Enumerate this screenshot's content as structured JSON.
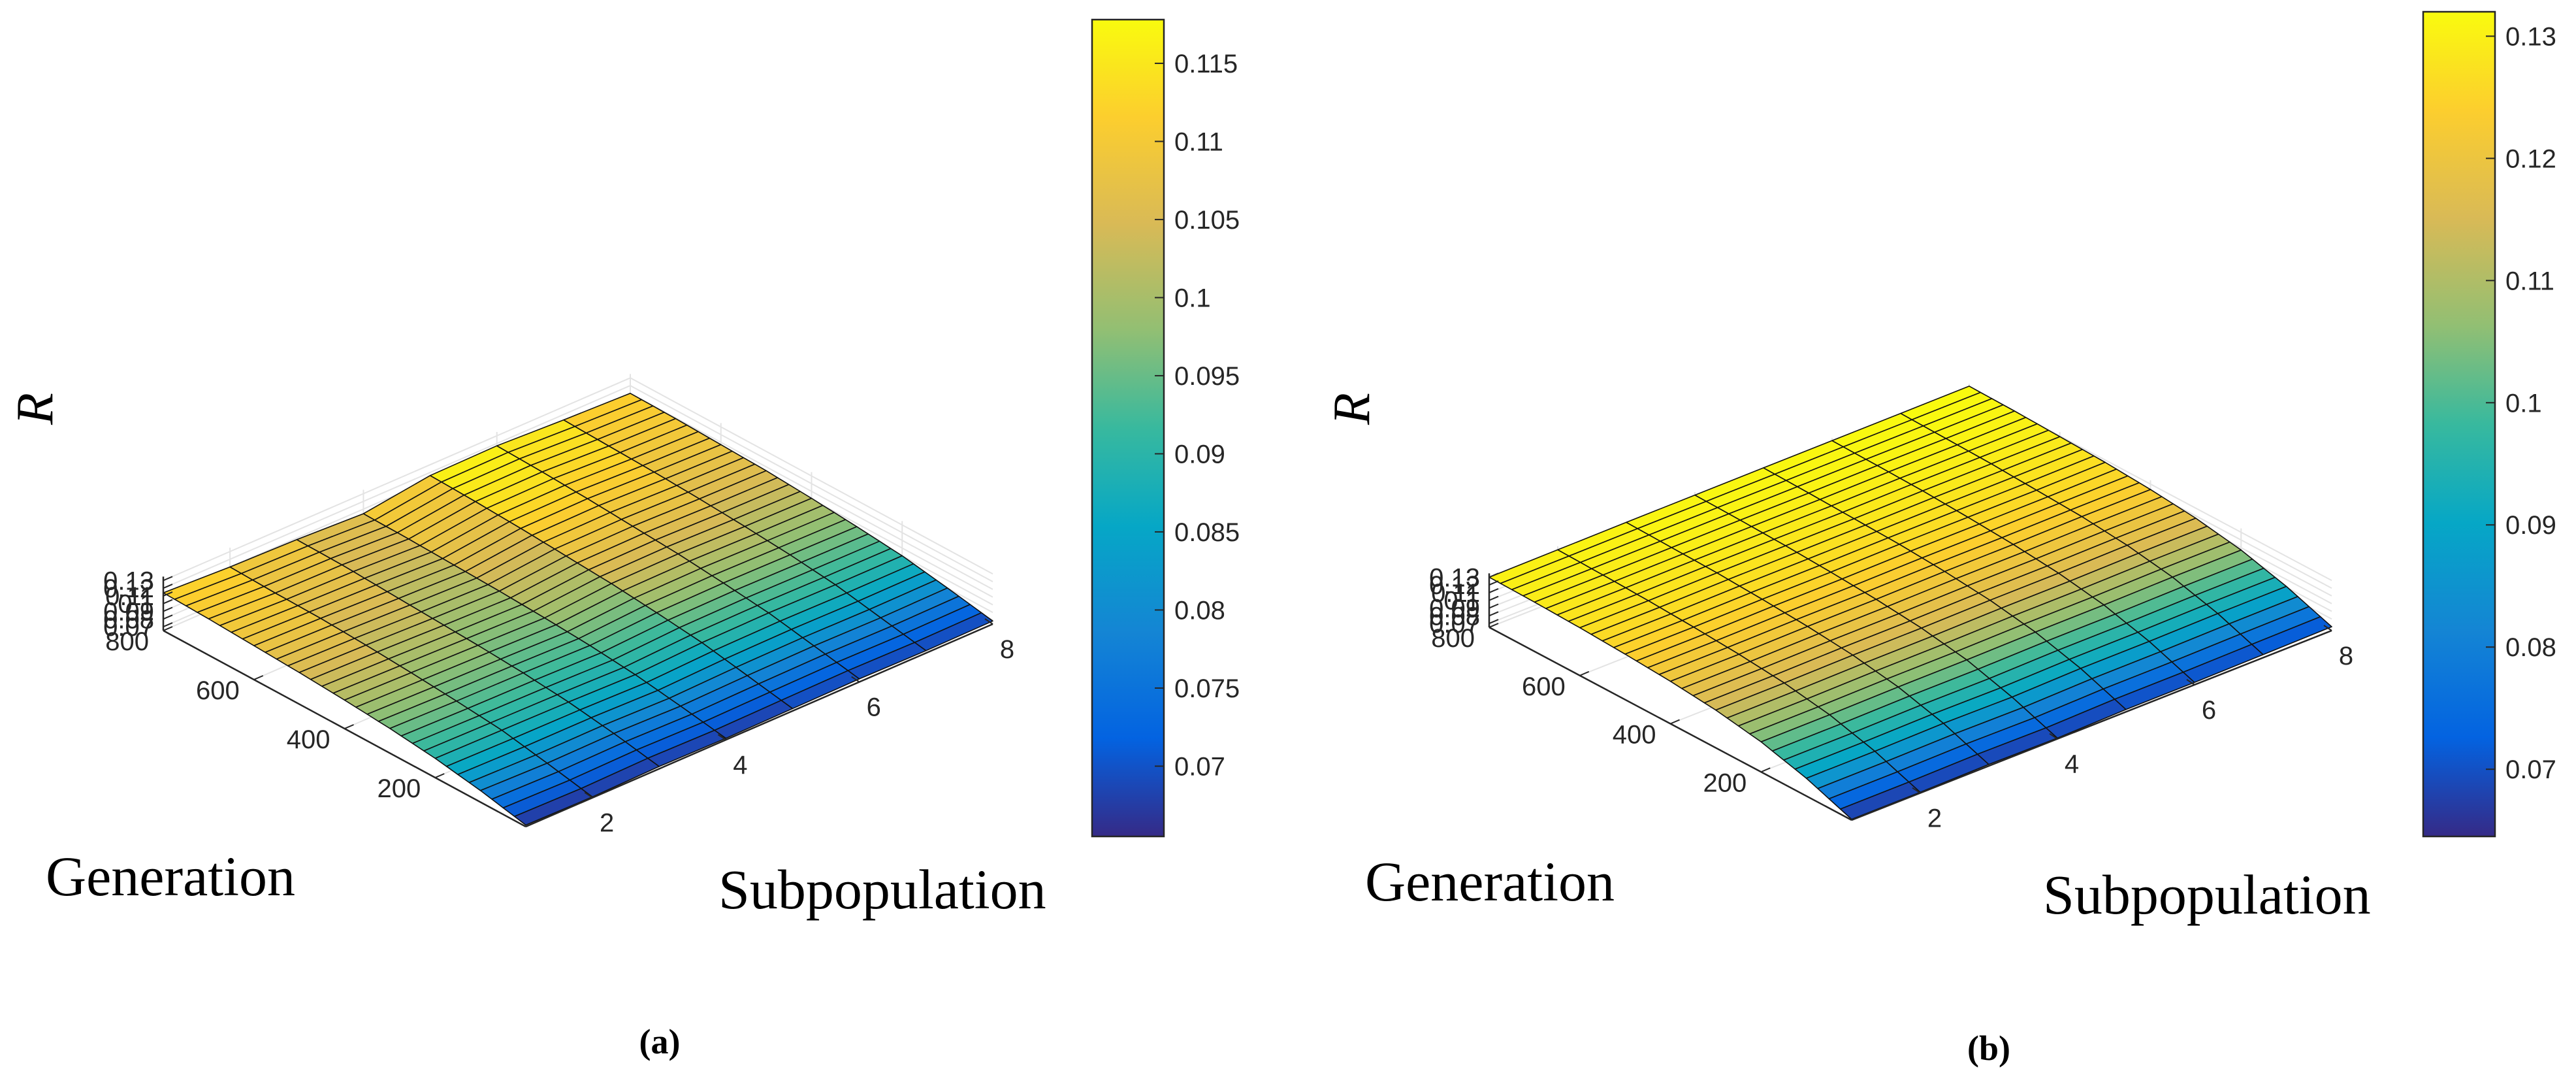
{
  "charts": [
    {
      "id": "a",
      "caption": "(a)",
      "type": "surface",
      "title": "",
      "zlabel": "R",
      "xlabel": "Subpopulation",
      "ylabel": "Generation",
      "z_ticks": [
        "0.07",
        "0.08",
        "0.09",
        "0.1",
        "0.11",
        "0.12",
        "0.13"
      ],
      "x_ticks": [
        "2",
        "4",
        "6",
        "8"
      ],
      "y_ticks": [
        "200",
        "400",
        "600",
        "800"
      ],
      "zlim": [
        0.065,
        0.135
      ],
      "xlim": [
        1,
        8
      ],
      "ylim": [
        0,
        800
      ],
      "colorbar": {
        "range": [
          0.0655,
          0.1178
        ],
        "ticks": [
          "0.07",
          "0.075",
          "0.08",
          "0.085",
          "0.09",
          "0.095",
          "0.1",
          "0.105",
          "0.11",
          "0.115"
        ]
      },
      "subpopulations": [
        1,
        2,
        3,
        4,
        5,
        6,
        7,
        8
      ],
      "generations": [
        0,
        100,
        200,
        300,
        400,
        500,
        600,
        700,
        800
      ],
      "surface_z": [
        [
          0.067,
          0.08,
          0.09,
          0.097,
          0.102,
          0.106,
          0.109,
          0.112,
          0.114
        ],
        [
          0.066,
          0.078,
          0.089,
          0.095,
          0.1,
          0.104,
          0.107,
          0.108,
          0.11
        ],
        [
          0.068,
          0.079,
          0.088,
          0.094,
          0.098,
          0.101,
          0.104,
          0.107,
          0.108
        ],
        [
          0.067,
          0.077,
          0.086,
          0.092,
          0.096,
          0.099,
          0.101,
          0.103,
          0.104
        ],
        [
          0.068,
          0.079,
          0.09,
          0.097,
          0.103,
          0.107,
          0.111,
          0.114,
          0.116
        ],
        [
          0.069,
          0.08,
          0.091,
          0.098,
          0.104,
          0.108,
          0.112,
          0.115,
          0.117
        ],
        [
          0.068,
          0.079,
          0.09,
          0.097,
          0.102,
          0.106,
          0.109,
          0.111,
          0.113
        ],
        [
          0.069,
          0.08,
          0.09,
          0.096,
          0.101,
          0.105,
          0.107,
          0.109,
          0.11
        ]
      ]
    },
    {
      "id": "b",
      "caption": "(b)",
      "type": "surface",
      "title": "",
      "zlabel": "R",
      "xlabel": "Subpopulation",
      "ylabel": "Generation",
      "z_ticks": [
        "0.07",
        "0.08",
        "0.09",
        "0.1",
        "0.11",
        "0.12",
        "0.13"
      ],
      "x_ticks": [
        "2",
        "4",
        "6",
        "8"
      ],
      "y_ticks": [
        "200",
        "400",
        "600",
        "800"
      ],
      "zlim": [
        0.065,
        0.135
      ],
      "xlim": [
        1,
        8
      ],
      "ylim": [
        0,
        800
      ],
      "colorbar": {
        "range": [
          0.0645,
          0.132
        ],
        "ticks": [
          "0.07",
          "0.08",
          "0.09",
          "0.1",
          "0.11",
          "0.12",
          "0.13"
        ]
      },
      "subpopulations": [
        1,
        2,
        3,
        4,
        5,
        6,
        7,
        8
      ],
      "generations": [
        0,
        100,
        200,
        300,
        400,
        500,
        600,
        700,
        800
      ],
      "surface_z": [
        [
          0.066,
          0.088,
          0.104,
          0.114,
          0.12,
          0.124,
          0.127,
          0.129,
          0.13
        ],
        [
          0.066,
          0.088,
          0.104,
          0.114,
          0.12,
          0.124,
          0.127,
          0.129,
          0.1305
        ],
        [
          0.067,
          0.089,
          0.105,
          0.115,
          0.121,
          0.125,
          0.128,
          0.1295,
          0.131
        ],
        [
          0.066,
          0.088,
          0.105,
          0.115,
          0.121,
          0.125,
          0.128,
          0.13,
          0.1312
        ],
        [
          0.068,
          0.09,
          0.106,
          0.116,
          0.122,
          0.126,
          0.128,
          0.13,
          0.1314
        ],
        [
          0.068,
          0.09,
          0.106,
          0.116,
          0.122,
          0.126,
          0.129,
          0.1305,
          0.1316
        ],
        [
          0.069,
          0.091,
          0.107,
          0.117,
          0.123,
          0.126,
          0.129,
          0.1305,
          0.1318
        ],
        [
          0.07,
          0.091,
          0.107,
          0.117,
          0.123,
          0.127,
          0.129,
          0.131,
          0.132
        ]
      ]
    }
  ],
  "colors": {
    "parula": [
      "#352a87",
      "#0363e1",
      "#1485d4",
      "#06a7c6",
      "#38b99e",
      "#92bf73",
      "#d9ba56",
      "#fcce2e",
      "#f9fb0e"
    ],
    "edge": "#111111",
    "grid": "#e3e3e3",
    "axis": "#262626"
  }
}
